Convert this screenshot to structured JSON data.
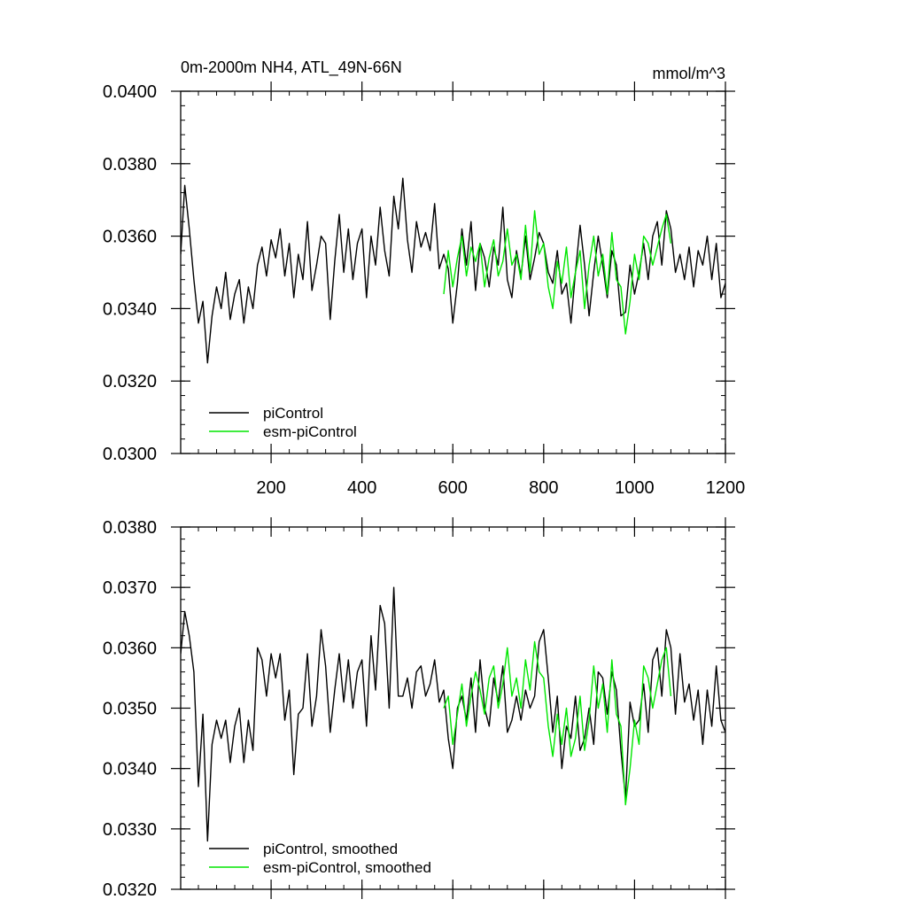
{
  "figure": {
    "title": "0m-2000m NH4, ATL_49N-66N",
    "units": "mmol/m^3"
  },
  "colors": {
    "piControl": "#000000",
    "esm_piControl": "#00e600",
    "axis": "#000000"
  },
  "chart_data": [
    {
      "type": "line",
      "panel": "top",
      "title": "0m-2000m NH4, ATL_49N-66N",
      "units_label": "mmol/m^3",
      "xlabel": "",
      "ylabel": "",
      "xlim": [
        1,
        1200
      ],
      "ylim": [
        0.03,
        0.04
      ],
      "x_ticks": [
        200,
        400,
        600,
        800,
        1000,
        1200
      ],
      "x_tick_labels": [
        "200",
        "400",
        "600",
        "800",
        "1000",
        "1200"
      ],
      "y_ticks": [
        0.03,
        0.032,
        0.034,
        0.036,
        0.038,
        0.04
      ],
      "y_tick_labels": [
        "0.0300",
        "0.0320",
        "0.0340",
        "0.0360",
        "0.0380",
        "0.0400"
      ],
      "legend_position": "bottom-left",
      "series": [
        {
          "name": "piControl",
          "color": "#000000",
          "x": [
            1,
            10,
            20,
            30,
            40,
            50,
            60,
            70,
            80,
            90,
            100,
            110,
            120,
            130,
            140,
            150,
            160,
            170,
            180,
            190,
            200,
            210,
            220,
            230,
            240,
            250,
            260,
            270,
            280,
            290,
            300,
            310,
            320,
            330,
            340,
            350,
            360,
            370,
            380,
            390,
            400,
            410,
            420,
            430,
            440,
            450,
            460,
            470,
            480,
            490,
            500,
            510,
            520,
            530,
            540,
            550,
            560,
            570,
            580,
            590,
            600,
            610,
            620,
            630,
            640,
            650,
            660,
            670,
            680,
            690,
            700,
            710,
            720,
            730,
            740,
            750,
            760,
            770,
            780,
            790,
            800,
            810,
            820,
            830,
            840,
            850,
            860,
            870,
            880,
            890,
            900,
            910,
            920,
            930,
            940,
            950,
            960,
            970,
            980,
            990,
            1000,
            1010,
            1020,
            1030,
            1040,
            1050,
            1060,
            1070,
            1080,
            1090,
            1100,
            1110,
            1120,
            1130,
            1140,
            1150,
            1160,
            1170,
            1180,
            1190,
            1200
          ],
          "y": [
            0.0355,
            0.0374,
            0.0362,
            0.0348,
            0.0336,
            0.0342,
            0.0325,
            0.0338,
            0.0346,
            0.034,
            0.035,
            0.0337,
            0.0344,
            0.0348,
            0.0336,
            0.0346,
            0.034,
            0.0352,
            0.0357,
            0.0349,
            0.0359,
            0.0354,
            0.0362,
            0.0349,
            0.0358,
            0.0343,
            0.0355,
            0.0348,
            0.0364,
            0.0345,
            0.0352,
            0.036,
            0.0358,
            0.0337,
            0.0353,
            0.0366,
            0.035,
            0.0362,
            0.0348,
            0.0358,
            0.0362,
            0.0343,
            0.036,
            0.0352,
            0.0368,
            0.0356,
            0.0349,
            0.0371,
            0.0362,
            0.0376,
            0.0359,
            0.035,
            0.0364,
            0.0357,
            0.0361,
            0.0356,
            0.0369,
            0.0351,
            0.0355,
            0.0351,
            0.0336,
            0.0347,
            0.0362,
            0.0352,
            0.0364,
            0.0345,
            0.0358,
            0.0354,
            0.0346,
            0.0357,
            0.0352,
            0.0368,
            0.0348,
            0.0343,
            0.0356,
            0.0349,
            0.036,
            0.0348,
            0.0354,
            0.0361,
            0.0358,
            0.035,
            0.0347,
            0.0356,
            0.0344,
            0.0347,
            0.0336,
            0.035,
            0.0363,
            0.0352,
            0.0338,
            0.035,
            0.036,
            0.0352,
            0.0343,
            0.0356,
            0.0352,
            0.0338,
            0.0339,
            0.0352,
            0.0344,
            0.035,
            0.0358,
            0.0348,
            0.036,
            0.0364,
            0.0352,
            0.0367,
            0.0362,
            0.035,
            0.0355,
            0.0348,
            0.0357,
            0.0346,
            0.0356,
            0.0352,
            0.036,
            0.0348,
            0.0358,
            0.0343,
            0.0347
          ]
        },
        {
          "name": "esm-piControl",
          "color": "#00e600",
          "x": [
            580,
            590,
            600,
            610,
            620,
            630,
            640,
            650,
            660,
            670,
            680,
            690,
            700,
            710,
            720,
            730,
            740,
            750,
            760,
            770,
            780,
            790,
            800,
            810,
            820,
            830,
            840,
            850,
            860,
            870,
            880,
            890,
            900,
            910,
            920,
            930,
            940,
            950,
            960,
            970,
            980,
            990,
            1000,
            1010,
            1020,
            1030,
            1040,
            1050,
            1060,
            1070,
            1080
          ],
          "y": [
            0.0344,
            0.0356,
            0.0346,
            0.0354,
            0.036,
            0.0349,
            0.0357,
            0.0353,
            0.0358,
            0.0346,
            0.0354,
            0.0359,
            0.0349,
            0.0353,
            0.0362,
            0.0352,
            0.0355,
            0.0348,
            0.0363,
            0.035,
            0.0367,
            0.0355,
            0.0358,
            0.0346,
            0.034,
            0.0353,
            0.0347,
            0.0357,
            0.0343,
            0.035,
            0.0356,
            0.034,
            0.0352,
            0.036,
            0.0349,
            0.0355,
            0.0344,
            0.0361,
            0.0348,
            0.0346,
            0.0333,
            0.0342,
            0.0355,
            0.0348,
            0.036,
            0.0358,
            0.0352,
            0.0357,
            0.0362,
            0.0366,
            0.0358
          ]
        }
      ]
    },
    {
      "type": "line",
      "panel": "bottom",
      "title": "",
      "xlabel": "",
      "ylabel": "",
      "xlim": [
        1,
        1200
      ],
      "ylim": [
        0.032,
        0.038
      ],
      "x_ticks": [
        200,
        400,
        600,
        800,
        1000,
        1200
      ],
      "x_tick_labels": [],
      "y_ticks": [
        0.032,
        0.033,
        0.034,
        0.035,
        0.036,
        0.037,
        0.038
      ],
      "y_tick_labels": [
        "0.0320",
        "0.0330",
        "0.0340",
        "0.0350",
        "0.0360",
        "0.0370",
        "0.0380"
      ],
      "legend_position": "bottom-left",
      "series": [
        {
          "name": "piControl, smoothed",
          "color": "#000000",
          "x": [
            1,
            10,
            20,
            30,
            40,
            50,
            60,
            70,
            80,
            90,
            100,
            110,
            120,
            130,
            140,
            150,
            160,
            170,
            180,
            190,
            200,
            210,
            220,
            230,
            240,
            250,
            260,
            270,
            280,
            290,
            300,
            310,
            320,
            330,
            340,
            350,
            360,
            370,
            380,
            390,
            400,
            410,
            420,
            430,
            440,
            450,
            460,
            470,
            480,
            490,
            500,
            510,
            520,
            530,
            540,
            550,
            560,
            570,
            580,
            590,
            600,
            610,
            620,
            630,
            640,
            650,
            660,
            670,
            680,
            690,
            700,
            710,
            720,
            730,
            740,
            750,
            760,
            770,
            780,
            790,
            800,
            810,
            820,
            830,
            840,
            850,
            860,
            870,
            880,
            890,
            900,
            910,
            920,
            930,
            940,
            950,
            960,
            970,
            980,
            990,
            1000,
            1010,
            1020,
            1030,
            1040,
            1050,
            1060,
            1070,
            1080,
            1090,
            1100,
            1110,
            1120,
            1130,
            1140,
            1150,
            1160,
            1170,
            1180,
            1190,
            1200
          ],
          "y": [
            0.0359,
            0.0366,
            0.0362,
            0.0356,
            0.0337,
            0.0349,
            0.0328,
            0.0344,
            0.0348,
            0.0345,
            0.0348,
            0.0341,
            0.0347,
            0.035,
            0.0341,
            0.0348,
            0.0343,
            0.036,
            0.0358,
            0.0352,
            0.0359,
            0.0355,
            0.0359,
            0.0348,
            0.0353,
            0.0339,
            0.0349,
            0.035,
            0.0359,
            0.0347,
            0.0352,
            0.0363,
            0.0357,
            0.0346,
            0.0353,
            0.0359,
            0.0351,
            0.0358,
            0.035,
            0.0356,
            0.0358,
            0.0347,
            0.0362,
            0.0353,
            0.0367,
            0.0364,
            0.035,
            0.037,
            0.0352,
            0.0352,
            0.0355,
            0.035,
            0.0356,
            0.0357,
            0.0352,
            0.0354,
            0.0358,
            0.0351,
            0.0353,
            0.0345,
            0.034,
            0.035,
            0.0352,
            0.0348,
            0.0355,
            0.0346,
            0.0358,
            0.035,
            0.0347,
            0.0355,
            0.0351,
            0.0357,
            0.0346,
            0.0348,
            0.0352,
            0.0348,
            0.0353,
            0.035,
            0.0352,
            0.0361,
            0.0363,
            0.0355,
            0.0346,
            0.0352,
            0.034,
            0.0347,
            0.0345,
            0.0352,
            0.0343,
            0.0345,
            0.035,
            0.0344,
            0.0356,
            0.0355,
            0.0349,
            0.0356,
            0.0353,
            0.0343,
            0.0335,
            0.0351,
            0.0347,
            0.0348,
            0.0354,
            0.0346,
            0.0358,
            0.036,
            0.0352,
            0.0363,
            0.036,
            0.0349,
            0.0359,
            0.0351,
            0.0354,
            0.0348,
            0.0353,
            0.0344,
            0.0353,
            0.0347,
            0.0357,
            0.0348,
            0.0346
          ]
        },
        {
          "name": "esm-piControl, smoothed",
          "color": "#00e600",
          "x": [
            580,
            590,
            600,
            610,
            620,
            630,
            640,
            650,
            660,
            670,
            680,
            690,
            700,
            710,
            720,
            730,
            740,
            750,
            760,
            770,
            780,
            790,
            800,
            810,
            820,
            830,
            840,
            850,
            860,
            870,
            880,
            890,
            900,
            910,
            920,
            930,
            940,
            950,
            960,
            970,
            980,
            990,
            1000,
            1010,
            1020,
            1030,
            1040,
            1050,
            1060,
            1070,
            1080
          ],
          "y": [
            0.035,
            0.0352,
            0.0344,
            0.0349,
            0.0354,
            0.0347,
            0.0352,
            0.0356,
            0.0353,
            0.0349,
            0.0355,
            0.0357,
            0.035,
            0.0354,
            0.036,
            0.0352,
            0.0355,
            0.035,
            0.0358,
            0.0353,
            0.0361,
            0.0356,
            0.0355,
            0.0347,
            0.0342,
            0.0349,
            0.0344,
            0.035,
            0.0342,
            0.0345,
            0.0352,
            0.0343,
            0.0348,
            0.0357,
            0.035,
            0.0354,
            0.0346,
            0.0358,
            0.0349,
            0.0347,
            0.0334,
            0.034,
            0.0348,
            0.0344,
            0.0357,
            0.0355,
            0.035,
            0.0354,
            0.0358,
            0.036,
            0.0352
          ]
        }
      ]
    }
  ]
}
